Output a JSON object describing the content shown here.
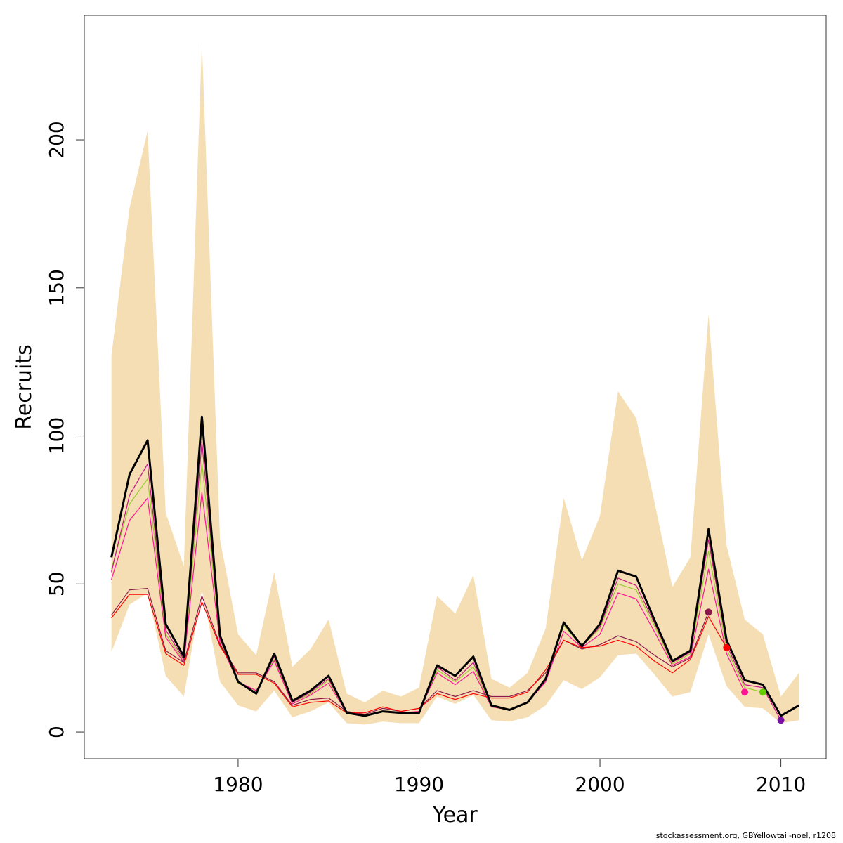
{
  "chart_data": {
    "type": "line",
    "xlabel": "Year",
    "ylabel": "Recruits",
    "xlim": [
      1971.5,
      2012.5
    ],
    "ylim": [
      -9,
      242
    ],
    "x_ticks": [
      1980,
      1990,
      2000,
      2010
    ],
    "y_ticks": [
      0,
      50,
      100,
      150,
      200
    ],
    "grid": false,
    "legend": "none",
    "band": {
      "color": "#f5deb3",
      "x": [
        1973,
        1974,
        1975,
        1976,
        1977,
        1978,
        1979,
        1980,
        1981,
        1982,
        1983,
        1984,
        1985,
        1986,
        1987,
        1988,
        1989,
        1990,
        1991,
        1992,
        1993,
        1994,
        1995,
        1996,
        1997,
        1998,
        1999,
        2000,
        2001,
        2002,
        2003,
        2004,
        2005,
        2006,
        2007,
        2008,
        2009,
        2010,
        2011
      ],
      "upper": [
        127,
        177,
        203,
        74,
        56,
        233,
        65,
        33,
        26,
        54,
        22,
        28,
        38,
        13,
        10,
        14,
        12,
        15,
        46,
        40,
        53,
        18,
        15,
        20,
        35,
        79,
        58,
        73,
        115,
        106,
        78,
        49,
        59,
        141,
        63,
        38,
        33,
        12,
        20
      ],
      "lower": [
        27,
        43,
        47,
        19,
        12,
        48,
        17,
        9,
        7,
        14,
        5,
        7,
        10,
        3,
        2.5,
        3.5,
        3,
        3,
        12,
        9.5,
        12.5,
        4,
        3.5,
        5,
        9,
        17.5,
        14.5,
        18.5,
        26,
        26.5,
        19.5,
        12,
        13.5,
        33,
        15.5,
        8.5,
        8,
        3,
        4
      ]
    },
    "series": [
      {
        "color": "#000000",
        "line_width": 3,
        "x": [
          1973,
          1974,
          1975,
          1976,
          1977,
          1978,
          1979,
          1980,
          1981,
          1982,
          1983,
          1984,
          1985,
          1986,
          1987,
          1988,
          1989,
          1990,
          1991,
          1992,
          1993,
          1994,
          1995,
          1996,
          1997,
          1998,
          1999,
          2000,
          2001,
          2002,
          2003,
          2004,
          2005,
          2006,
          2007,
          2008,
          2009,
          2010,
          2011
        ],
        "values": [
          59,
          87,
          98.5,
          36.5,
          25.5,
          106.5,
          32.5,
          17,
          13,
          26.5,
          10.5,
          14,
          19,
          6.5,
          5.5,
          7,
          6.5,
          6.5,
          22.5,
          19,
          25.5,
          9,
          7.5,
          10,
          18,
          37,
          29,
          36.5,
          54.5,
          52.5,
          38,
          24,
          27.5,
          68.5,
          31,
          17.5,
          16,
          5.5,
          9
        ]
      },
      {
        "color": "#9acd32",
        "line_width": 1.2,
        "x": [
          1973,
          1974,
          1975,
          1976,
          1977,
          1978,
          1979,
          1980,
          1981,
          1982,
          1983,
          1984,
          1985,
          1986,
          1987,
          1988,
          1989,
          1990,
          1991,
          1992,
          1993,
          1994,
          1995,
          1996,
          1997,
          1998,
          1999,
          2000,
          2001,
          2002,
          2003,
          2004,
          2005,
          2006,
          2007,
          2008,
          2009
        ],
        "values": [
          55,
          77,
          85.5,
          33,
          24,
          91,
          31,
          16.5,
          13.5,
          24.5,
          10,
          13,
          17.5,
          6.5,
          5.5,
          7,
          6.5,
          6.5,
          21,
          17,
          22,
          8.5,
          7.5,
          10,
          17.5,
          36,
          29,
          35,
          50,
          48,
          36,
          23,
          26.5,
          61,
          28,
          15,
          13.5
        ],
        "marker": {
          "x": 2009,
          "y": 13.5,
          "color": "#66cc00"
        }
      },
      {
        "color": "#c71585",
        "line_width": 1.2,
        "x": [
          1973,
          1974,
          1975,
          1976,
          1977,
          1978,
          1979,
          1980,
          1981,
          1982,
          1983,
          1984,
          1985,
          1986,
          1987,
          1988,
          1989,
          1990,
          1991,
          1992,
          1993,
          1994,
          1995,
          1996,
          1997,
          1998,
          1999,
          2000,
          2001,
          2002,
          2003,
          2004,
          2005,
          2006,
          2007,
          2008,
          2009,
          2010
        ],
        "values": [
          54,
          80,
          90.5,
          34.5,
          24.5,
          98,
          31.5,
          17,
          13,
          25.5,
          10,
          13.5,
          18,
          6.5,
          5.5,
          7,
          6.5,
          6.5,
          22,
          17.5,
          23.5,
          9,
          7.5,
          10,
          17.5,
          36.5,
          29,
          35.5,
          52,
          49.5,
          37,
          23.5,
          27,
          65,
          29.5,
          16,
          15,
          4
        ],
        "marker": {
          "x": 2010,
          "y": 4,
          "color": "#7b12a6"
        }
      },
      {
        "color": "#ff1493",
        "line_width": 1.2,
        "x": [
          1973,
          1974,
          1975,
          1976,
          1977,
          1978,
          1979,
          1980,
          1981,
          1982,
          1983,
          1984,
          1985,
          1986,
          1987,
          1988,
          1989,
          1990,
          1991,
          1992,
          1993,
          1994,
          1995,
          1996,
          1997,
          1998,
          1999,
          2000,
          2001,
          2002,
          2003,
          2004,
          2005,
          2006,
          2007,
          2008
        ],
        "values": [
          51.5,
          71.5,
          79,
          32,
          23.5,
          81,
          30,
          17,
          14,
          24,
          9.5,
          12.5,
          16.5,
          6.5,
          5.5,
          7,
          6.5,
          7,
          20,
          16,
          20.5,
          8.5,
          7.5,
          10,
          17,
          34,
          28.5,
          33,
          47,
          45,
          34,
          22.5,
          25.5,
          55,
          26.5,
          13.5
        ],
        "marker": {
          "x": 2008,
          "y": 13.5,
          "color": "#ff1493"
        }
      },
      {
        "color": "#8b1a4a",
        "line_width": 1.2,
        "x": [
          1973,
          1974,
          1975,
          1976,
          1977,
          1978,
          1979,
          1980,
          1981,
          1982,
          1983,
          1984,
          1985,
          1986,
          1987,
          1988,
          1989,
          1990,
          1991,
          1992,
          1993,
          1994,
          1995,
          1996,
          1997,
          1998,
          1999,
          2000,
          2001,
          2002,
          2003,
          2004,
          2005,
          2006
        ],
        "values": [
          39.5,
          48,
          48.5,
          27.5,
          23.5,
          46,
          29.5,
          20,
          20,
          17,
          9,
          11,
          11.5,
          7,
          6,
          8,
          7,
          8,
          14,
          12,
          14,
          12,
          12,
          14,
          20,
          31,
          28,
          29.5,
          32.5,
          30.5,
          26,
          22,
          25,
          40.5
        ],
        "marker": {
          "x": 2006,
          "y": 40.5,
          "color": "#8b1a4a"
        }
      },
      {
        "color": "#ff0000",
        "line_width": 1.2,
        "x": [
          1973,
          1974,
          1975,
          1976,
          1977,
          1978,
          1979,
          1980,
          1981,
          1982,
          1983,
          1984,
          1985,
          1986,
          1987,
          1988,
          1989,
          1990,
          1991,
          1992,
          1993,
          1994,
          1995,
          1996,
          1997,
          1998,
          1999,
          2000,
          2001,
          2002,
          2003,
          2004,
          2005,
          2006,
          2007
        ],
        "values": [
          38.5,
          46.5,
          46.5,
          26.5,
          22.5,
          44,
          29,
          19.5,
          19.5,
          16.5,
          8.5,
          10,
          10.5,
          6.5,
          6.5,
          8.5,
          7,
          8,
          13,
          11,
          13,
          11.5,
          11.5,
          13.5,
          21,
          31,
          28.5,
          29,
          31,
          29,
          24,
          20,
          24.5,
          39,
          28.5
        ],
        "marker": {
          "x": 2007,
          "y": 28.5,
          "color": "#ff0000"
        }
      }
    ]
  },
  "footer": {
    "credit": "stockassessment.org, GBYellowtail-noel, r1208"
  }
}
